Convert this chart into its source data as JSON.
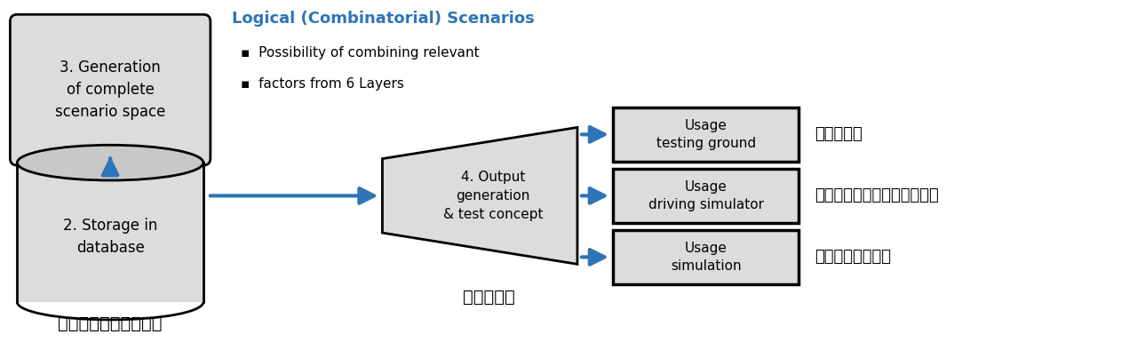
{
  "bg_color": "#ffffff",
  "arrow_color": "#2E75B6",
  "box_fill": "#DCDCDC",
  "box_edge": "#000000",
  "text_color": "#000000",
  "blue_text_color": "#2E75B6",
  "title_logical": "Logical (Combinatorial) Scenarios",
  "bullet1": "Possibility of combining relevant",
  "bullet2": "factors from 6 Layers",
  "box1_text": "3. Generation\nof complete\nscenario space",
  "box2_text": "2. Storage in\ndatabase",
  "box3_text": "4. Output\ngeneration\n& test concept",
  "box4_text": "Usage\ntesting ground",
  "box5_text": "Usage\ndriving simulator",
  "box6_text": "Usage\nsimulation",
  "label_db": "シナリオデータベース",
  "label_test": "テスト生成",
  "label_jissya": "実車テスト",
  "label_drive": "ドライブシミュレータテスト",
  "label_sim": "シミュレーション"
}
